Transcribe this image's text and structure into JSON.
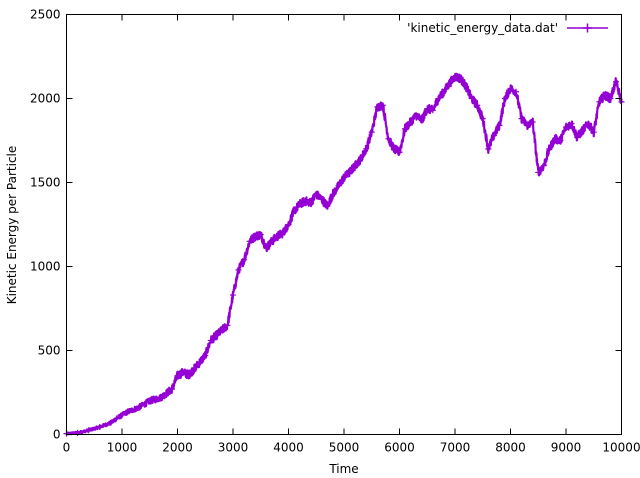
{
  "chart_data": {
    "type": "line",
    "title": "",
    "xlabel": "Time",
    "ylabel": "Kinetic Energy per Particle",
    "xlim": [
      0,
      10000
    ],
    "ylim": [
      0,
      2500
    ],
    "xticks": [
      0,
      1000,
      2000,
      3000,
      4000,
      5000,
      6000,
      7000,
      8000,
      9000,
      10000
    ],
    "yticks": [
      0,
      500,
      1000,
      1500,
      2000,
      2500
    ],
    "grid": false,
    "legend_position": "top-right",
    "noise_band": 25,
    "series": [
      {
        "name": "'kinetic_energy_data.dat'",
        "color": "#9400d3",
        "x": [
          0,
          200,
          400,
          600,
          800,
          900,
          1100,
          1300,
          1500,
          1700,
          1900,
          2000,
          2100,
          2200,
          2300,
          2500,
          2600,
          2800,
          2900,
          3000,
          3100,
          3200,
          3300,
          3400,
          3500,
          3600,
          3700,
          3800,
          3900,
          4000,
          4100,
          4200,
          4300,
          4400,
          4500,
          4600,
          4700,
          4800,
          4900,
          5000,
          5100,
          5200,
          5300,
          5400,
          5500,
          5600,
          5700,
          5800,
          5900,
          6000,
          6100,
          6200,
          6300,
          6400,
          6500,
          6600,
          6700,
          6800,
          6900,
          7000,
          7100,
          7200,
          7300,
          7400,
          7500,
          7600,
          7700,
          7800,
          7900,
          8000,
          8100,
          8200,
          8300,
          8400,
          8500,
          8600,
          8700,
          8800,
          8900,
          9000,
          9100,
          9200,
          9300,
          9400,
          9500,
          9600,
          9700,
          9800,
          9900,
          10000
        ],
        "y": [
          5,
          10,
          25,
          45,
          70,
          95,
          135,
          160,
          200,
          220,
          270,
          350,
          370,
          355,
          390,
          470,
          560,
          620,
          650,
          830,
          980,
          1040,
          1150,
          1180,
          1190,
          1110,
          1150,
          1180,
          1200,
          1250,
          1330,
          1370,
          1390,
          1380,
          1430,
          1400,
          1360,
          1430,
          1480,
          1530,
          1560,
          1600,
          1640,
          1700,
          1800,
          1950,
          1960,
          1760,
          1700,
          1680,
          1820,
          1860,
          1900,
          1870,
          1940,
          1930,
          2000,
          2040,
          2090,
          2130,
          2120,
          2070,
          2000,
          1960,
          1880,
          1700,
          1780,
          1840,
          2000,
          2060,
          2040,
          1880,
          1840,
          1860,
          1560,
          1600,
          1700,
          1760,
          1750,
          1830,
          1850,
          1770,
          1810,
          1850,
          1800,
          1980,
          2020,
          2000,
          2100,
          1980
        ]
      }
    ]
  }
}
